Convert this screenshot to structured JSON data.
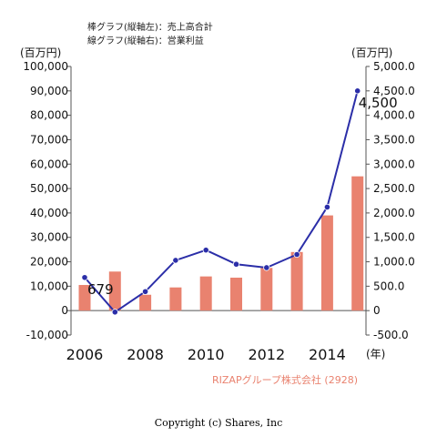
{
  "legend": {
    "bar_label": "棒グラフ(縦軸左)：売上高合計",
    "line_label": "線グラフ(縦軸右)：営業利益"
  },
  "company_label": "RIZAPグループ株式会社 (2928)",
  "copyright": "Copyright (c) Shares, Inc",
  "colors": {
    "bar": "#e9826f",
    "line": "#2b2ea8",
    "axis": "#555555",
    "grid": "#dddddd"
  },
  "chart_data": {
    "type": "bar+line",
    "x": [
      2006,
      2007,
      2008,
      2009,
      2010,
      2011,
      2012,
      2013,
      2014,
      2015
    ],
    "left_axis": {
      "unit_label": "(百万円)",
      "ylim": [
        -10000,
        100000
      ],
      "ticks": [
        "-10,000",
        "0",
        "10,000",
        "20,000",
        "30,000",
        "40,000",
        "50,000",
        "60,000",
        "70,000",
        "80,000",
        "90,000",
        "100,000"
      ],
      "tick_values": [
        -10000,
        0,
        10000,
        20000,
        30000,
        40000,
        50000,
        60000,
        70000,
        80000,
        90000,
        100000
      ]
    },
    "right_axis": {
      "unit_label": "(百万円)",
      "ylim": [
        -500,
        5000
      ],
      "ticks": [
        "-500.0",
        "0",
        "500.0",
        "1,000.0",
        "1,500.0",
        "2,000.0",
        "2,500.0",
        "3,000.0",
        "3,500.0",
        "4,000.0",
        "4,500.0",
        "5,000.0"
      ],
      "tick_values": [
        -500,
        0,
        500,
        1000,
        1500,
        2000,
        2500,
        3000,
        3500,
        4000,
        4500,
        5000
      ]
    },
    "x_ticks": [
      "2006",
      "2008",
      "2010",
      "2012",
      "2014"
    ],
    "x_tick_values": [
      2006,
      2008,
      2010,
      2012,
      2014
    ],
    "x_unit_label": "(年)",
    "series": [
      {
        "name": "売上高合計",
        "kind": "bar",
        "axis": "left",
        "values": [
          10500,
          16000,
          6500,
          9500,
          14000,
          13500,
          17500,
          24000,
          39000,
          55000
        ]
      },
      {
        "name": "営業利益",
        "kind": "line",
        "axis": "right",
        "values": [
          679,
          -30,
          390,
          1030,
          1240,
          950,
          880,
          1150,
          2120,
          4500
        ]
      }
    ],
    "data_labels": [
      {
        "series": "営業利益",
        "index": 0,
        "text": "679"
      },
      {
        "series": "営業利益",
        "index": 9,
        "text": "4,500"
      }
    ],
    "grid": false
  }
}
